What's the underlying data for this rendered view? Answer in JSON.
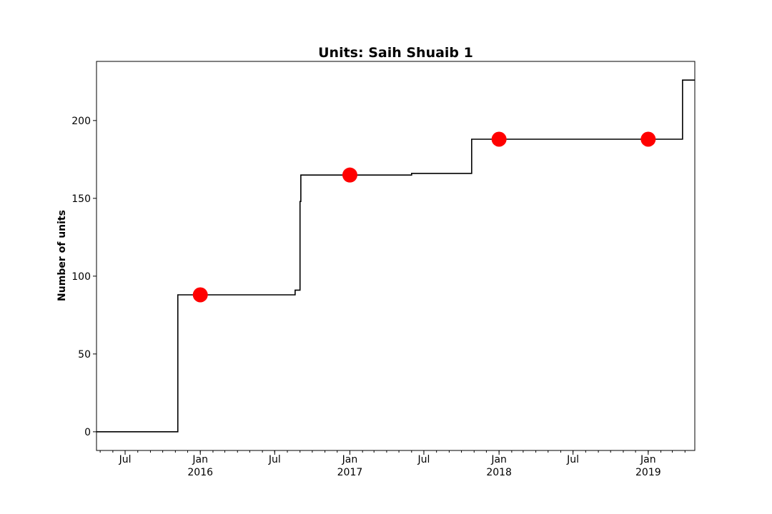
{
  "chart_data": {
    "type": "line",
    "title": "Units: Saih Shuaib 1",
    "xlabel": "",
    "ylabel": "Number of units",
    "xlim": [
      "2015-04-22",
      "2019-04-25"
    ],
    "ylim": [
      -12,
      238
    ],
    "grid": false,
    "legend": "none",
    "yticks": [
      0,
      50,
      100,
      150,
      200
    ],
    "xticks": [
      {
        "date": "2015-07-01",
        "label": "Jul",
        "sublabel": ""
      },
      {
        "date": "2016-01-01",
        "label": "Jan",
        "sublabel": "2016"
      },
      {
        "date": "2016-07-01",
        "label": "Jul",
        "sublabel": ""
      },
      {
        "date": "2017-01-01",
        "label": "Jan",
        "sublabel": "2017"
      },
      {
        "date": "2017-07-01",
        "label": "Jul",
        "sublabel": ""
      },
      {
        "date": "2018-01-01",
        "label": "Jan",
        "sublabel": "2018"
      },
      {
        "date": "2018-07-01",
        "label": "Jul",
        "sublabel": ""
      },
      {
        "date": "2019-01-01",
        "label": "Jan",
        "sublabel": "2019"
      }
    ],
    "minor_ticks": "monthly",
    "series": [
      {
        "kind": "step",
        "color": "#000000",
        "points": [
          {
            "x": "2015-04-22",
            "y": 0
          },
          {
            "x": "2015-11-07",
            "y": 0
          },
          {
            "x": "2015-11-07",
            "y": 88
          },
          {
            "x": "2016-08-20",
            "y": 88
          },
          {
            "x": "2016-08-20",
            "y": 91
          },
          {
            "x": "2016-09-01",
            "y": 91
          },
          {
            "x": "2016-09-01",
            "y": 148
          },
          {
            "x": "2016-09-03",
            "y": 148
          },
          {
            "x": "2016-09-03",
            "y": 165
          },
          {
            "x": "2017-06-01",
            "y": 165
          },
          {
            "x": "2017-06-01",
            "y": 166
          },
          {
            "x": "2017-10-26",
            "y": 166
          },
          {
            "x": "2017-10-26",
            "y": 188
          },
          {
            "x": "2019-03-26",
            "y": 188
          },
          {
            "x": "2019-03-26",
            "y": 226
          },
          {
            "x": "2019-04-25",
            "y": 226
          }
        ]
      },
      {
        "kind": "markers",
        "color": "#ff0000",
        "points": [
          {
            "x": "2016-01-01",
            "y": 88
          },
          {
            "x": "2017-01-01",
            "y": 165
          },
          {
            "x": "2018-01-01",
            "y": 188
          },
          {
            "x": "2019-01-01",
            "y": 188
          }
        ]
      }
    ]
  }
}
